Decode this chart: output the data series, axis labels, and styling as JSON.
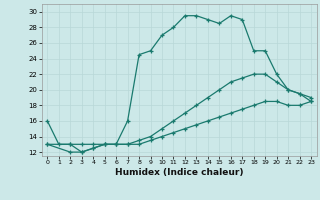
{
  "title": "",
  "xlabel": "Humidex (Indice chaleur)",
  "ylabel": "",
  "bg_color": "#cce8e8",
  "grid_color": "#b8d8d8",
  "line_color": "#1a7a6e",
  "xlim": [
    -0.5,
    23.5
  ],
  "ylim": [
    11.5,
    31
  ],
  "yticks": [
    12,
    14,
    16,
    18,
    20,
    22,
    24,
    26,
    28,
    30
  ],
  "xticks": [
    0,
    1,
    2,
    3,
    4,
    5,
    6,
    7,
    8,
    9,
    10,
    11,
    12,
    13,
    14,
    15,
    16,
    17,
    18,
    19,
    20,
    21,
    22,
    23
  ],
  "line1_x": [
    0,
    1,
    2,
    3,
    4,
    5,
    6,
    7,
    8,
    9,
    10,
    11,
    12,
    13,
    14,
    15,
    16,
    17,
    18,
    19,
    20,
    21,
    22,
    23
  ],
  "line1_y": [
    16,
    13,
    13,
    12,
    12.5,
    13,
    13,
    16,
    24.5,
    25,
    27,
    28,
    29.5,
    29.5,
    29,
    28.5,
    29.5,
    29,
    25.0,
    25.0,
    22,
    20,
    19.5,
    18.5
  ],
  "line2_x": [
    0,
    2,
    3,
    4,
    5,
    6,
    7,
    8,
    9,
    10,
    11,
    12,
    13,
    14,
    15,
    16,
    17,
    18,
    19,
    20,
    21,
    22,
    23
  ],
  "line2_y": [
    13,
    13,
    13,
    13,
    13,
    13,
    13,
    13.5,
    14,
    15,
    16,
    17,
    18,
    19,
    20,
    21,
    21.5,
    22,
    22,
    21,
    20,
    19.5,
    19
  ],
  "line3_x": [
    0,
    2,
    3,
    4,
    5,
    6,
    7,
    8,
    9,
    10,
    11,
    12,
    13,
    14,
    15,
    16,
    17,
    18,
    19,
    20,
    21,
    22,
    23
  ],
  "line3_y": [
    13,
    12,
    12,
    12.5,
    13,
    13,
    13,
    13,
    13.5,
    14,
    14.5,
    15,
    15.5,
    16,
    16.5,
    17,
    17.5,
    18,
    18.5,
    18.5,
    18,
    18,
    18.5
  ]
}
